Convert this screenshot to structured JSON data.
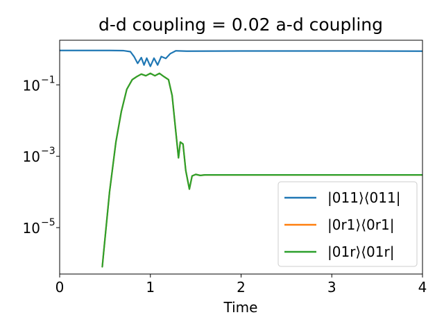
{
  "chart_data": {
    "type": "line",
    "title": "d-d coupling = 0.02 a-d coupling",
    "xlabel": "Time",
    "ylabel": "",
    "xlim": [
      0,
      4
    ],
    "ylim_log10": [
      -6.3,
      0.25
    ],
    "yscale": "log",
    "x_ticks": [
      "0",
      "1",
      "2",
      "3",
      "4"
    ],
    "y_ticks": [
      {
        "log10": -1,
        "base": "10",
        "exp": "−1"
      },
      {
        "log10": -3,
        "base": "10",
        "exp": "−3"
      },
      {
        "log10": -5,
        "base": "10",
        "exp": "−5"
      }
    ],
    "grid": false,
    "legend_position": "lower-right",
    "series": [
      {
        "name": "|011⟩⟨011|",
        "color": "#1f77b4",
        "points": [
          [
            0,
            0.92
          ],
          [
            0.55,
            0.92
          ],
          [
            0.7,
            0.91
          ],
          [
            0.78,
            0.85
          ],
          [
            0.82,
            0.62
          ],
          [
            0.86,
            0.4
          ],
          [
            0.9,
            0.58
          ],
          [
            0.93,
            0.36
          ],
          [
            0.96,
            0.56
          ],
          [
            1.0,
            0.33
          ],
          [
            1.04,
            0.56
          ],
          [
            1.08,
            0.36
          ],
          [
            1.12,
            0.62
          ],
          [
            1.17,
            0.55
          ],
          [
            1.22,
            0.75
          ],
          [
            1.28,
            0.9
          ],
          [
            1.4,
            0.88
          ],
          [
            2.0,
            0.89
          ],
          [
            3.0,
            0.89
          ],
          [
            4.0,
            0.88
          ]
        ]
      },
      {
        "name": "|0r1⟩⟨0r1|",
        "color": "#ff7f0e",
        "points": [
          [
            0.47,
            8e-07
          ],
          [
            0.48,
            1.5e-06
          ],
          [
            0.55,
            0.0001
          ],
          [
            0.62,
            0.0025
          ],
          [
            0.68,
            0.018
          ],
          [
            0.74,
            0.075
          ],
          [
            0.8,
            0.14
          ],
          [
            0.85,
            0.17
          ],
          [
            0.9,
            0.2
          ],
          [
            0.95,
            0.18
          ],
          [
            1.0,
            0.21
          ],
          [
            1.05,
            0.18
          ],
          [
            1.1,
            0.21
          ],
          [
            1.15,
            0.17
          ],
          [
            1.2,
            0.14
          ],
          [
            1.24,
            0.05
          ],
          [
            1.28,
            0.005
          ],
          [
            1.31,
            0.0009
          ],
          [
            1.33,
            0.0025
          ],
          [
            1.36,
            0.0022
          ],
          [
            1.39,
            0.0004
          ],
          [
            1.43,
            0.00012
          ],
          [
            1.46,
            0.00028
          ],
          [
            1.5,
            0.00031
          ],
          [
            1.55,
            0.00029
          ],
          [
            1.6,
            0.0003
          ],
          [
            2.0,
            0.0003
          ],
          [
            3.0,
            0.0003
          ],
          [
            4.0,
            0.0003
          ]
        ]
      },
      {
        "name": "|01r⟩⟨01r|",
        "color": "#2ca02c",
        "points": [
          [
            0.47,
            8e-07
          ],
          [
            0.48,
            1.5e-06
          ],
          [
            0.55,
            0.0001
          ],
          [
            0.62,
            0.0025
          ],
          [
            0.68,
            0.018
          ],
          [
            0.74,
            0.075
          ],
          [
            0.8,
            0.14
          ],
          [
            0.85,
            0.17
          ],
          [
            0.9,
            0.2
          ],
          [
            0.95,
            0.18
          ],
          [
            1.0,
            0.21
          ],
          [
            1.05,
            0.18
          ],
          [
            1.1,
            0.21
          ],
          [
            1.15,
            0.17
          ],
          [
            1.2,
            0.14
          ],
          [
            1.24,
            0.05
          ],
          [
            1.28,
            0.005
          ],
          [
            1.31,
            0.0009
          ],
          [
            1.33,
            0.0025
          ],
          [
            1.36,
            0.0022
          ],
          [
            1.39,
            0.0004
          ],
          [
            1.43,
            0.00012
          ],
          [
            1.46,
            0.00028
          ],
          [
            1.5,
            0.00031
          ],
          [
            1.55,
            0.00029
          ],
          [
            1.6,
            0.0003
          ],
          [
            2.0,
            0.0003
          ],
          [
            3.0,
            0.0003
          ],
          [
            4.0,
            0.0003
          ]
        ]
      }
    ]
  }
}
